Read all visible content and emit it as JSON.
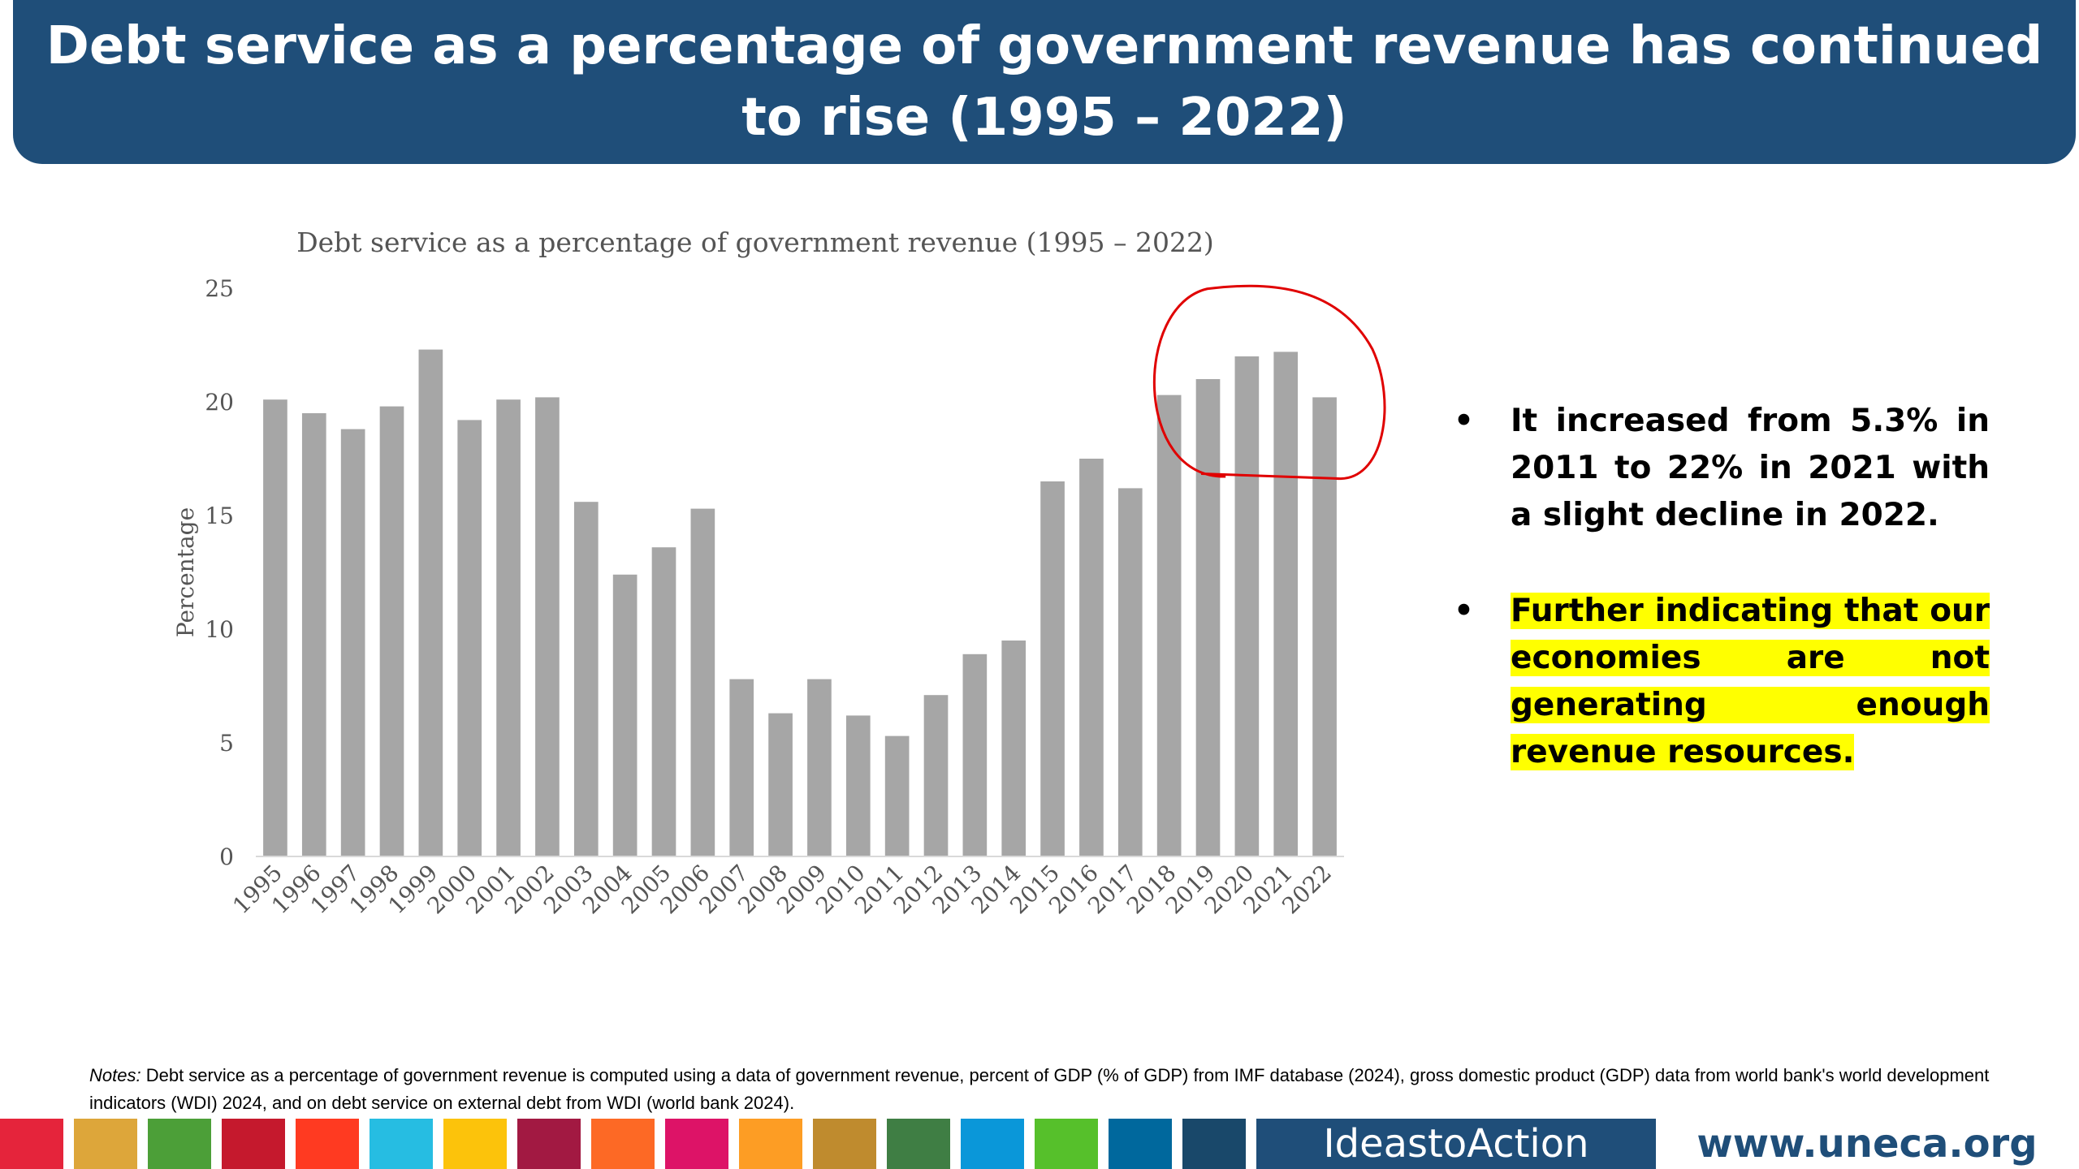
{
  "header": {
    "title": "Debt service as a percentage of government revenue has continued to rise (1995 – 2022)"
  },
  "chart_data": {
    "type": "bar",
    "title": "Debt service as a percentage of government revenue (1995 – 2022)",
    "ylabel": "Percentage",
    "xlabel": "",
    "ylim": [
      0,
      25
    ],
    "yticks": [
      0,
      5,
      10,
      15,
      20,
      25
    ],
    "grid": false,
    "bar_color": "#a6a6a6",
    "highlight_circle": {
      "categories": [
        "2018",
        "2019",
        "2020",
        "2021",
        "2022"
      ],
      "color": "#e00000"
    },
    "categories": [
      "1995",
      "1996",
      "1997",
      "1998",
      "1999",
      "2000",
      "2001",
      "2002",
      "2003",
      "2004",
      "2005",
      "2006",
      "2007",
      "2008",
      "2009",
      "2010",
      "2011",
      "2012",
      "2013",
      "2014",
      "2015",
      "2016",
      "2017",
      "2018",
      "2019",
      "2020",
      "2021",
      "2022"
    ],
    "values": [
      20.1,
      19.5,
      18.8,
      19.8,
      22.3,
      19.2,
      20.1,
      20.2,
      15.6,
      12.4,
      13.6,
      15.3,
      7.8,
      6.3,
      7.8,
      6.2,
      5.3,
      7.1,
      8.9,
      9.5,
      16.5,
      17.5,
      16.2,
      20.3,
      21.0,
      22.0,
      22.2,
      20.2
    ]
  },
  "bullets": [
    {
      "text": "It increased from 5.3% in 2011 to 22% in 2021 with a slight decline in 2022.",
      "highlight": false
    },
    {
      "text": "Further indicating that our economies are not generating enough revenue resources.",
      "highlight": true,
      "highlight_color": "#ffff00"
    }
  ],
  "bullet_symbol": "•",
  "notes": {
    "label": "Notes:",
    "text": " Debt service as a percentage of government revenue is computed using a data of government revenue, percent of GDP (% of GDP) from IMF database (2024), gross domestic product (GDP) data from world bank's world development indicators (WDI) 2024, and on debt service on external debt from WDI (world bank 2024)."
  },
  "footer": {
    "sdg_colors": [
      "#e5243b",
      "#dda63a",
      "#4c9f38",
      "#c5192d",
      "#ff3a21",
      "#26bde2",
      "#fcc30b",
      "#a21942",
      "#fd6925",
      "#dd1367",
      "#fd9d24",
      "#bf8b2e",
      "#3f7e44",
      "#0a97d9",
      "#56c02b",
      "#00689d",
      "#19486a"
    ],
    "brand": "IdeastoAction",
    "website": "www.uneca.org",
    "brand_color": "#1f4e79"
  }
}
